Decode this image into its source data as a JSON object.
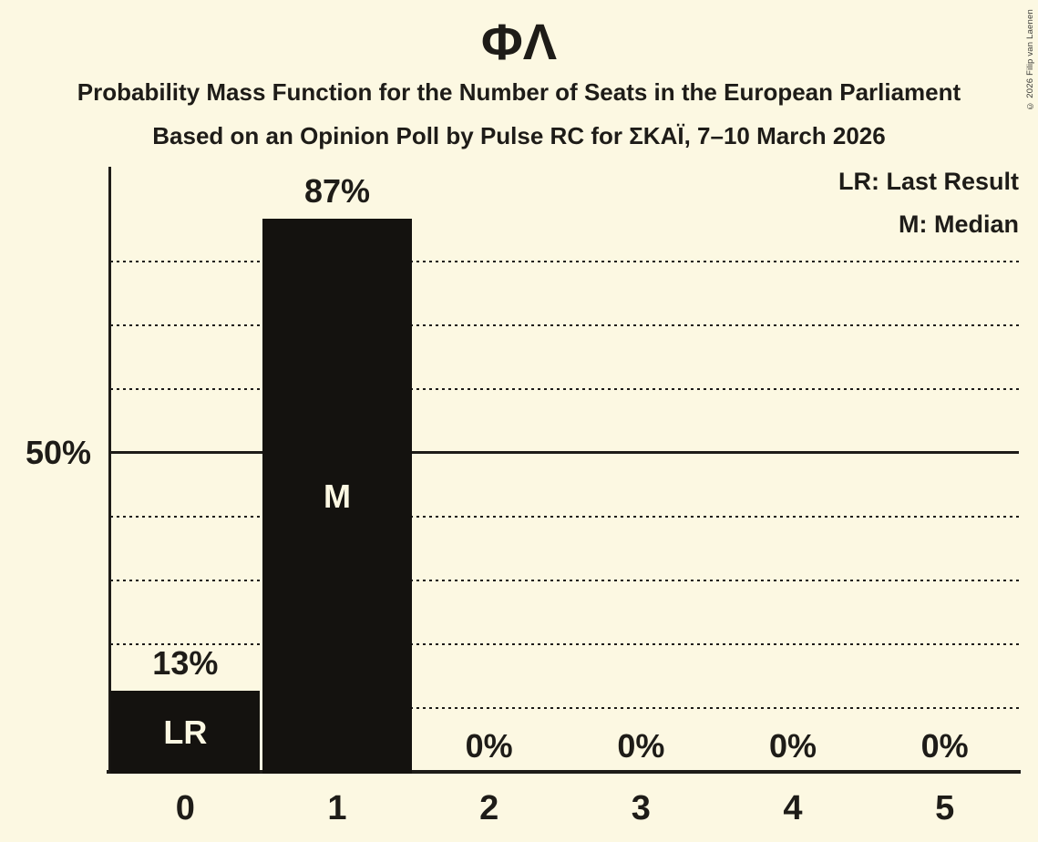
{
  "header": {
    "title": "ΦΛ",
    "subtitle1": "Probability Mass Function for the Number of Seats in the European Parliament",
    "subtitle2": "Based on an Opinion Poll by Pulse RC for ΣΚΑΪ, 7–10 March 2026"
  },
  "legend": {
    "lr": "LR: Last Result",
    "m": "M: Median"
  },
  "copyright": "© 2026 Filip van Laenen",
  "colors": {
    "background": "#FCF8E2",
    "bar": "#14120F",
    "ink": "#1E1C18",
    "bar_letter": "#FCF8E2"
  },
  "chart_data": {
    "type": "bar",
    "title": "ΦΛ",
    "subtitle": "Probability Mass Function for the Number of Seats in the European Parliament",
    "source_line": "Based on an Opinion Poll by Pulse RC for ΣΚΑΪ, 7–10 March 2026",
    "categories": [
      "0",
      "1",
      "2",
      "3",
      "4",
      "5"
    ],
    "values": [
      13,
      87,
      0,
      0,
      0,
      0
    ],
    "value_labels": [
      "13%",
      "87%",
      "0%",
      "0%",
      "0%",
      "0%"
    ],
    "bar_letters": [
      "LR",
      "M",
      "",
      "",
      "",
      ""
    ],
    "annotations": {
      "0": "LR = Last Result",
      "1": "M = Median"
    },
    "legend_entries": [
      "LR: Last Result",
      "M: Median"
    ],
    "y_tick_labels": [
      "50%"
    ],
    "ylim": [
      0,
      95
    ],
    "gridlines_pct": [
      10,
      20,
      30,
      40,
      50,
      60,
      70,
      80
    ],
    "solid_gridline_pct": 50,
    "grid": "dotted horizontal lines every 10%, solid line at 50%",
    "legend_position": "top-right"
  }
}
